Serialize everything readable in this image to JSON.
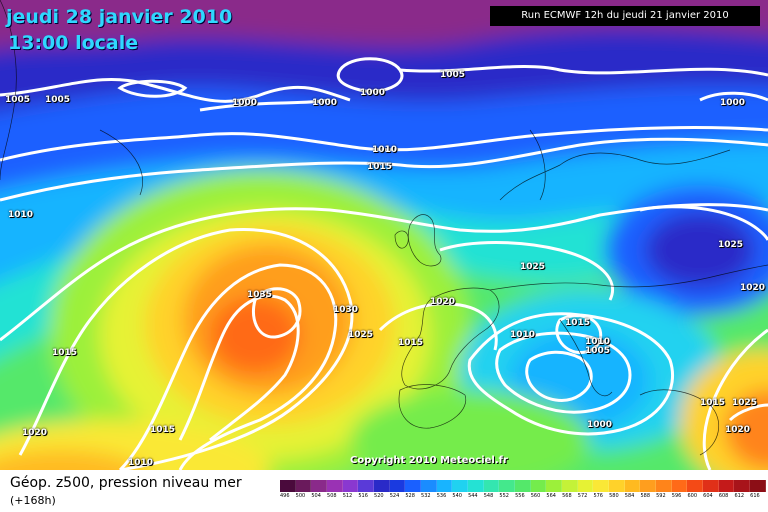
{
  "header": {
    "date": "jeudi 28 janvier 2010",
    "time": "13:00 locale",
    "run": "Run ECMWF 12h du jeudi 21 janvier 2010"
  },
  "copyright": "Copyright 2010 Meteociel.fr",
  "footer": {
    "title": "Géop. z500, pression niveau mer",
    "subtitle": "(+168h)"
  },
  "scale": {
    "labels": [
      "496",
      "500",
      "504",
      "508",
      "512",
      "516",
      "520",
      "524",
      "528",
      "532",
      "536",
      "540",
      "544",
      "548",
      "552",
      "556",
      "560",
      "564",
      "568",
      "572",
      "576",
      "580",
      "584",
      "588",
      "592",
      "596",
      "600",
      "604",
      "608",
      "612",
      "616"
    ],
    "colors": [
      "#4a0a3c",
      "#6a1a5c",
      "#8a2a8a",
      "#9a32b4",
      "#8a38d0",
      "#5a3ad8",
      "#2a2ac8",
      "#1a3ae0",
      "#1a60ff",
      "#1a8cff",
      "#18b4ff",
      "#20d2f0",
      "#24e2d4",
      "#34e6b0",
      "#44e88c",
      "#54e86a",
      "#74ec4c",
      "#9cf03a",
      "#c4f238",
      "#e6f234",
      "#fae836",
      "#ffd22a",
      "#ffba20",
      "#ff9e1e",
      "#ff841a",
      "#ff6a18",
      "#f44a16",
      "#e03018",
      "#c41a1a",
      "#a8141a",
      "#8c0e16"
    ]
  },
  "pressure_labels": [
    {
      "text": "1005"
    },
    {
      "text": "1005"
    },
    {
      "text": "1000"
    },
    {
      "text": "1000"
    },
    {
      "text": "1000"
    },
    {
      "text": "1005"
    },
    {
      "text": "1000"
    },
    {
      "text": "1010"
    },
    {
      "text": "1015"
    },
    {
      "text": "1010"
    },
    {
      "text": "1025"
    },
    {
      "text": "1025"
    },
    {
      "text": "1020"
    },
    {
      "text": "1020"
    },
    {
      "text": "1035"
    },
    {
      "text": "1030"
    },
    {
      "text": "1025"
    },
    {
      "text": "1015"
    },
    {
      "text": "1015"
    },
    {
      "text": "1010"
    },
    {
      "text": "1015"
    },
    {
      "text": "1010"
    },
    {
      "text": "1005"
    },
    {
      "text": "1000"
    },
    {
      "text": "1020"
    },
    {
      "text": "1015"
    },
    {
      "text": "1010"
    },
    {
      "text": "1015"
    },
    {
      "text": "1025"
    },
    {
      "text": "1020"
    }
  ]
}
